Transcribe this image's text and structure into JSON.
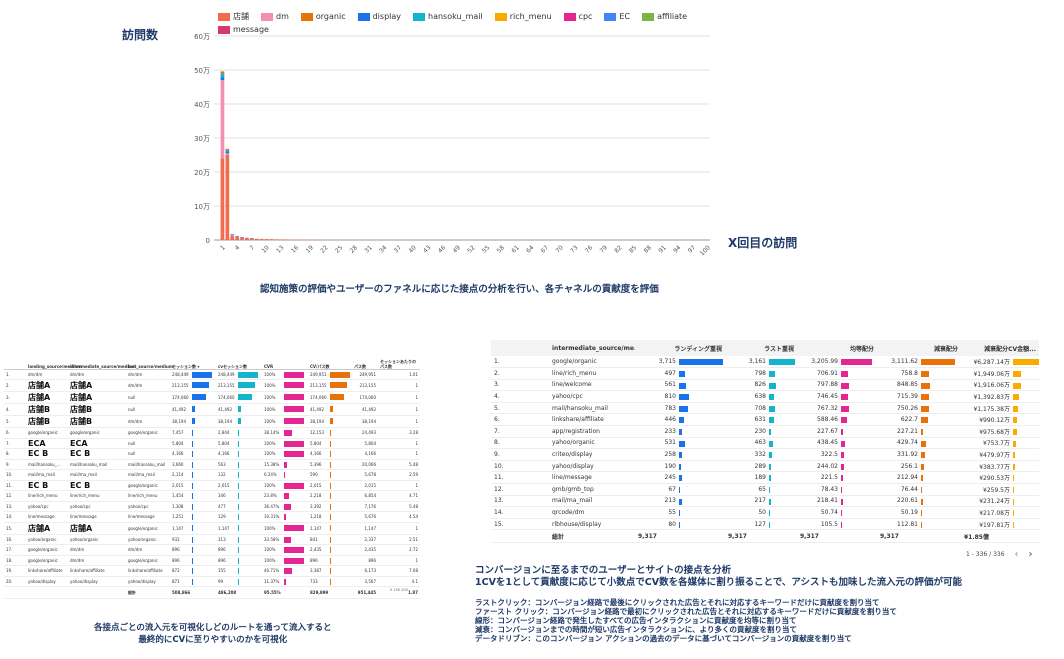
{
  "chart_data": {
    "type": "bar",
    "title": "",
    "ylabel": "訪問数",
    "xlabel": "X回目の訪問",
    "ylim": [
      0,
      600000
    ],
    "ytick_labels": [
      "0",
      "10万",
      "20万",
      "30万",
      "40万",
      "50万",
      "60万"
    ],
    "xtick_labels": [
      "1",
      "4",
      "7",
      "10",
      "13",
      "16",
      "19",
      "22",
      "25",
      "28",
      "31",
      "34",
      "37",
      "40",
      "43",
      "46",
      "49",
      "52",
      "55",
      "58",
      "61",
      "64",
      "67",
      "70",
      "73",
      "76",
      "79",
      "82",
      "85",
      "88",
      "91",
      "94",
      "97",
      "100"
    ],
    "series": [
      {
        "name": "店舗",
        "color": "#ef6c4c"
      },
      {
        "name": "dm",
        "color": "#f48fb1"
      },
      {
        "name": "organic",
        "color": "#e8710a"
      },
      {
        "name": "display",
        "color": "#1a73e8"
      },
      {
        "name": "hansoku_mail",
        "color": "#12b5cb"
      },
      {
        "name": "rich_menu",
        "color": "#f9ab00"
      },
      {
        "name": "cpc",
        "color": "#e52592"
      },
      {
        "name": "EC",
        "color": "#4285f4"
      },
      {
        "name": "affiliate",
        "color": "#7cb342"
      },
      {
        "name": "message",
        "color": "#d63a6a"
      }
    ],
    "bars": [
      {
        "x": 1,
        "stack": [
          {
            "s": "店舗",
            "v": 240000
          },
          {
            "s": "dm",
            "v": 230000
          },
          {
            "s": "display",
            "v": 8000
          },
          {
            "s": "hansoku_mail",
            "v": 12000
          },
          {
            "s": "organic",
            "v": 6000
          }
        ]
      },
      {
        "x": 2,
        "stack": [
          {
            "s": "店舗",
            "v": 250000
          },
          {
            "s": "dm",
            "v": 5000
          },
          {
            "s": "display",
            "v": 6000
          },
          {
            "s": "hansoku_mail",
            "v": 4000
          },
          {
            "s": "organic",
            "v": 3000
          }
        ]
      },
      {
        "x": 3,
        "stack": [
          {
            "s": "店舗",
            "v": 12000
          },
          {
            "s": "dm",
            "v": 3000
          },
          {
            "s": "display",
            "v": 2000
          }
        ]
      },
      {
        "x": 4,
        "stack": [
          {
            "s": "店舗",
            "v": 9000
          },
          {
            "s": "dm",
            "v": 2000
          },
          {
            "s": "display",
            "v": 1000
          }
        ]
      },
      {
        "x": 5,
        "stack": [
          {
            "s": "店舗",
            "v": 7000
          },
          {
            "s": "display",
            "v": 1500
          }
        ]
      },
      {
        "x": 6,
        "stack": [
          {
            "s": "店舗",
            "v": 5500
          },
          {
            "s": "display",
            "v": 1000
          }
        ]
      },
      {
        "x": 7,
        "stack": [
          {
            "s": "店舗",
            "v": 4500
          },
          {
            "s": "display",
            "v": 800
          }
        ]
      },
      {
        "x": 8,
        "stack": [
          {
            "s": "店舗",
            "v": 3800
          }
        ]
      },
      {
        "x": 9,
        "stack": [
          {
            "s": "店舗",
            "v": 3200
          }
        ]
      },
      {
        "x": 10,
        "stack": [
          {
            "s": "店舗",
            "v": 2800
          }
        ]
      },
      {
        "x": 11,
        "stack": [
          {
            "s": "店舗",
            "v": 2400
          }
        ]
      },
      {
        "x": 12,
        "stack": [
          {
            "s": "店舗",
            "v": 2100
          }
        ]
      },
      {
        "x": 13,
        "stack": [
          {
            "s": "店舗",
            "v": 1800
          }
        ]
      },
      {
        "x": 14,
        "stack": [
          {
            "s": "店舗",
            "v": 1600
          }
        ]
      },
      {
        "x": 15,
        "stack": [
          {
            "s": "店舗",
            "v": 1400
          }
        ]
      },
      {
        "x": 16,
        "stack": [
          {
            "s": "店舗",
            "v": 1200
          }
        ]
      },
      {
        "x": 17,
        "stack": [
          {
            "s": "店舗",
            "v": 1000
          }
        ]
      },
      {
        "x": 18,
        "stack": [
          {
            "s": "店舗",
            "v": 900
          }
        ]
      },
      {
        "x": 19,
        "stack": [
          {
            "s": "店舗",
            "v": 800
          }
        ]
      },
      {
        "x": 20,
        "stack": [
          {
            "s": "店舗",
            "v": 700
          }
        ]
      }
    ]
  },
  "captions": {
    "chart": "認知施策の評価やユーザーのファネルに応じた接点の分析を行い、各チャネルの貢献度を評価",
    "left_line1": "各接点ごとの流入元を可視化しどのルートを通って流入すると",
    "left_line2": "最終的にCVに至りやすいのかを可視化",
    "right_line1": "コンバージョンに至るまでのユーザーとサイトの接点を分析",
    "right_line2": "1CVを1として貢献度に応じて小数点でCV数を各媒体に割り振ることで、アシストも加味した流入元の評価が可能",
    "defs": [
      "ラストクリック：コンバージョン経路で最後にクリックされた広告とそれに対応するキーワードだけに貢献度を割り当て",
      "ファースト クリック：コンバージョン経路で最初にクリックされた広告とそれに対応するキーワードだけに貢献度を割り当て",
      "線形：コンバージョン経路で発生したすべての広告インタラクションに貢献度を均等に割り当て",
      "減衰：コンバージョンまでの時間が短い広告インタラクションに、より多くの貢献度を割り当て",
      "データドリブン：このコンバージョン アクションの過去のデータに基づいてコンバージョンの貢献度を割り当て"
    ]
  },
  "left_table": {
    "headers": [
      "",
      "landing_source/medium",
      "intermediate_source/medium",
      "last_source/medium",
      "セッション数 ▾",
      "cvセッション数",
      "CVR",
      "CV/パス数",
      "パス数",
      "セッションあたりのパス数"
    ],
    "rows": [
      {
        "n": "1.",
        "a": "dm/dm",
        "b": "dm/dm",
        "c": "dm/dm",
        "s": "248,449",
        "sp": 100,
        "cv": "248,449",
        "cvp": 100,
        "cvr": "100%",
        "cvrp": 100,
        "cvpath": "249,951",
        "cvpathp": 100,
        "path": "249,951",
        "pps": "1.01"
      },
      {
        "n": "2.",
        "a": "店舗A",
        "b": "店舗A",
        "c": "dm/dm",
        "s": "213,155",
        "sp": 86,
        "cv": "213,155",
        "cvp": 86,
        "cvr": "100%",
        "cvrp": 100,
        "cvpath": "213,155",
        "cvpathp": 85,
        "path": "213,155",
        "pps": "1",
        "big": true
      },
      {
        "n": "3.",
        "a": "店舗A",
        "b": "店舗A",
        "c": "null",
        "s": "174,060",
        "sp": 70,
        "cv": "174,060",
        "cvp": 70,
        "cvr": "100%",
        "cvrp": 100,
        "cvpath": "174,060",
        "cvpathp": 70,
        "path": "174,060",
        "pps": "1",
        "big": true
      },
      {
        "n": "4.",
        "a": "店舗B",
        "b": "店舗B",
        "c": "null",
        "s": "41,492",
        "sp": 17,
        "cv": "41,492",
        "cvp": 17,
        "cvr": "100%",
        "cvrp": 100,
        "cvpath": "41,492",
        "cvpathp": 17,
        "path": "41,492",
        "pps": "1",
        "big": true
      },
      {
        "n": "5.",
        "a": "店舗B",
        "b": "店舗B",
        "c": "dm/dm",
        "s": "38,194",
        "sp": 15,
        "cv": "38,194",
        "cvp": 15,
        "cvr": "100%",
        "cvrp": 100,
        "cvpath": "38,194",
        "cvpathp": 15,
        "path": "38,194",
        "pps": "1",
        "big": true
      },
      {
        "n": "6.",
        "a": "google/organic",
        "b": "google/organic",
        "c": "google/organic",
        "s": "7,457",
        "sp": 3,
        "cv": "2,844",
        "cvp": 1,
        "cvr": "38.14%",
        "cvrp": 38,
        "cvpath": "12,153",
        "cvpathp": 5,
        "path": "24,493",
        "pps": "3.28"
      },
      {
        "n": "7.",
        "a": "ECA",
        "b": "ECA",
        "c": "null",
        "s": "5,804",
        "sp": 2,
        "cv": "5,804",
        "cvp": 2,
        "cvr": "100%",
        "cvrp": 100,
        "cvpath": "5,804",
        "cvpathp": 2,
        "path": "5,804",
        "pps": "1",
        "big": true
      },
      {
        "n": "8.",
        "a": "EC B",
        "b": "EC B",
        "c": "null",
        "s": "4,166",
        "sp": 2,
        "cv": "4,166",
        "cvp": 2,
        "cvr": "100%",
        "cvrp": 100,
        "cvpath": "4,166",
        "cvpathp": 2,
        "path": "4,166",
        "pps": "1",
        "big": true
      },
      {
        "n": "9.",
        "a": "mail/hansoku_...",
        "b": "mail/hansoku_mail",
        "c": "mail/hansoku_mail",
        "s": "3,660",
        "sp": 1,
        "cv": "563",
        "cvp": 0.3,
        "cvr": "15.38%",
        "cvrp": 15,
        "cvpath": "5,396",
        "cvpathp": 2,
        "path": "20,066",
        "pps": "5.48"
      },
      {
        "n": "10.",
        "a": "mail/ma_mail",
        "b": "mail/ma_mail",
        "c": "mail/ma_mail",
        "s": "2,114",
        "sp": 1,
        "cv": "132",
        "cvp": 0.1,
        "cvr": "6.24%",
        "cvrp": 6,
        "cvpath": "590",
        "cvpathp": 0.3,
        "path": "5,678",
        "pps": "2.59"
      },
      {
        "n": "11.",
        "a": "EC B",
        "b": "EC B",
        "c": "google/organic",
        "s": "2,015",
        "sp": 1,
        "cv": "2,015",
        "cvp": 1,
        "cvr": "100%",
        "cvrp": 100,
        "cvpath": "2,015",
        "cvpathp": 1,
        "path": "2,015",
        "pps": "1",
        "big": true
      },
      {
        "n": "12.",
        "a": "line/rich_menu",
        "b": "line/rich_menu",
        "c": "line/rich_menu",
        "s": "1,454",
        "sp": 0.6,
        "cv": "346",
        "cvp": 0.2,
        "cvr": "23.8%",
        "cvrp": 24,
        "cvpath": "2,218",
        "cvpathp": 1,
        "path": "6,854",
        "pps": "4.71"
      },
      {
        "n": "13.",
        "a": "yahoo/cpc",
        "b": "yahoo/cpc",
        "c": "yahoo/cpc",
        "s": "1,308",
        "sp": 0.5,
        "cv": "477",
        "cvp": 0.2,
        "cvr": "36.47%",
        "cvrp": 36,
        "cvpath": "3,392",
        "cvpathp": 1.4,
        "path": "7,176",
        "pps": "5.48"
      },
      {
        "n": "14.",
        "a": "line/message",
        "b": "line/message",
        "c": "line/message",
        "s": "1,251",
        "sp": 0.5,
        "cv": "129",
        "cvp": 0.1,
        "cvr": "10.31%",
        "cvrp": 10,
        "cvpath": "1,218",
        "cvpathp": 0.5,
        "path": "5,676",
        "pps": "4.54"
      },
      {
        "n": "15.",
        "a": "店舗A",
        "b": "店舗A",
        "c": "google/organic",
        "s": "1,147",
        "sp": 0.5,
        "cv": "1,147",
        "cvp": 0.5,
        "cvr": "100%",
        "cvrp": 100,
        "cvpath": "1,147",
        "cvpathp": 0.5,
        "path": "1,147",
        "pps": "1",
        "big": true
      },
      {
        "n": "16.",
        "a": "yahoo/organic",
        "b": "yahoo/organic",
        "c": "yahoo/organic",
        "s": "932",
        "sp": 0.4,
        "cv": "313",
        "cvp": 0.1,
        "cvr": "33.58%",
        "cvrp": 34,
        "cvpath": "841",
        "cvpathp": 0.3,
        "path": "2,337",
        "pps": "2.51"
      },
      {
        "n": "17.",
        "a": "google/organic",
        "b": "dm/dm",
        "c": "dm/dm",
        "s": "896",
        "sp": 0.4,
        "cv": "896",
        "cvp": 0.4,
        "cvr": "100%",
        "cvrp": 100,
        "cvpath": "2,435",
        "cvpathp": 1,
        "path": "2,435",
        "pps": "2.72"
      },
      {
        "n": "18.",
        "a": "google/organic",
        "b": "dm/dm",
        "c": "google/organic",
        "s": "896",
        "sp": 0.4,
        "cv": "896",
        "cvp": 0.4,
        "cvr": "100%",
        "cvrp": 100,
        "cvpath": "896",
        "cvpathp": 0.4,
        "path": "896",
        "pps": "1"
      },
      {
        "n": "19.",
        "a": "linkshare/affiliate",
        "b": "linkshare/affiliate",
        "c": "linkshare/affiliate",
        "s": "872",
        "sp": 0.4,
        "cv": "355",
        "cvp": 0.1,
        "cvr": "40.71%",
        "cvrp": 41,
        "cvpath": "3,387",
        "cvpathp": 1.4,
        "path": "6,173",
        "pps": "7.08"
      },
      {
        "n": "20.",
        "a": "yahoo/display",
        "b": "yahoo/display",
        "c": "yahoo/display",
        "s": "871",
        "sp": 0.4,
        "cv": "99",
        "cvp": 0.04,
        "cvr": "11.37%",
        "cvrp": 11,
        "cvpath": "733",
        "cvpathp": 0.3,
        "path": "3,567",
        "pps": "4.1"
      }
    ],
    "total": {
      "label": "総計",
      "s": "508,866",
      "cv": "486,208",
      "cvr": "95.55%",
      "cvpath": "829,899",
      "path": "951,445",
      "pps": "1.87"
    },
    "ticks": "0  100  200"
  },
  "right_table": {
    "headers": [
      "",
      "intermediate_source/me...",
      "ランディング重視",
      "ラスト重視",
      "均等配分",
      "減衰配分",
      "減衰配分CV金額..."
    ],
    "colors": [
      "#1a73e8",
      "#12b5cb",
      "#e52592",
      "#e8710a",
      "#f9ab00"
    ],
    "rows": [
      {
        "n": "1.",
        "src": "google/organic",
        "v": [
          "3,715",
          "3,161",
          "3,205.99",
          "3,111.62",
          "¥6,287.14万"
        ],
        "p": [
          100,
          85,
          86,
          84,
          100
        ]
      },
      {
        "n": "2.",
        "src": "line/rich_menu",
        "v": [
          "497",
          "798",
          "706.91",
          "758.8",
          "¥1,949.06万"
        ],
        "p": [
          13,
          21,
          19,
          20,
          31
        ]
      },
      {
        "n": "3.",
        "src": "line/welcome",
        "v": [
          "561",
          "826",
          "797.88",
          "848.85",
          "¥1,916.06万"
        ],
        "p": [
          15,
          22,
          21,
          23,
          30
        ]
      },
      {
        "n": "4.",
        "src": "yahoo/cpc",
        "v": [
          "810",
          "638",
          "746.45",
          "715.39",
          "¥1,392.83万"
        ],
        "p": [
          22,
          17,
          20,
          19,
          22
        ]
      },
      {
        "n": "5.",
        "src": "mail/hansoku_mail",
        "v": [
          "783",
          "708",
          "767.32",
          "750.26",
          "¥1,175.38万"
        ],
        "p": [
          21,
          19,
          21,
          20,
          19
        ]
      },
      {
        "n": "6.",
        "src": "linkshare/affiliate",
        "v": [
          "446",
          "631",
          "588.46",
          "622.7",
          "¥990.12万"
        ],
        "p": [
          12,
          17,
          16,
          17,
          16
        ]
      },
      {
        "n": "7.",
        "src": "app/registration",
        "v": [
          "233",
          "230",
          "227.67",
          "227.21",
          "¥975.68万"
        ],
        "p": [
          6,
          6,
          6,
          6,
          16
        ]
      },
      {
        "n": "8.",
        "src": "yahoo/organic",
        "v": [
          "531",
          "463",
          "438.45",
          "429.74",
          "¥753.7万"
        ],
        "p": [
          14,
          12,
          12,
          12,
          12
        ]
      },
      {
        "n": "9.",
        "src": "criteo/display",
        "v": [
          "258",
          "332",
          "322.5",
          "331.92",
          "¥479.97万"
        ],
        "p": [
          7,
          9,
          9,
          9,
          8
        ]
      },
      {
        "n": "10.",
        "src": "yahoo/display",
        "v": [
          "190",
          "289",
          "244.02",
          "256.1",
          "¥383.77万"
        ],
        "p": [
          5,
          8,
          7,
          7,
          6
        ]
      },
      {
        "n": "11.",
        "src": "line/message",
        "v": [
          "245",
          "189",
          "221.5",
          "212.94",
          "¥290.53万"
        ],
        "p": [
          7,
          5,
          6,
          6,
          5
        ]
      },
      {
        "n": "12.",
        "src": "gmb/gmb_top",
        "v": [
          "67",
          "65",
          "78.43",
          "76.44",
          "¥259.5万"
        ],
        "p": [
          2,
          2,
          2,
          2,
          4
        ]
      },
      {
        "n": "13.",
        "src": "mail/ma_mail",
        "v": [
          "213",
          "217",
          "218.41",
          "220.61",
          "¥231.24万"
        ],
        "p": [
          6,
          6,
          6,
          6,
          4
        ]
      },
      {
        "n": "14.",
        "src": "qrcode/dm",
        "v": [
          "55",
          "50",
          "50.74",
          "50.19",
          "¥217.08万"
        ],
        "p": [
          1.5,
          1.4,
          1.4,
          1.4,
          3.5
        ]
      },
      {
        "n": "15.",
        "src": "rlbhouse/display",
        "v": [
          "80",
          "127",
          "105.5",
          "112.81",
          "¥197.81万"
        ],
        "p": [
          2,
          3,
          3,
          3,
          3
        ]
      }
    ],
    "total": {
      "label": "総計",
      "v": [
        "9,317",
        "9,317",
        "9,317",
        "9,317",
        "¥1.85億"
      ]
    },
    "pager": "1 - 336 / 336",
    "prev": "‹",
    "next": "›"
  }
}
